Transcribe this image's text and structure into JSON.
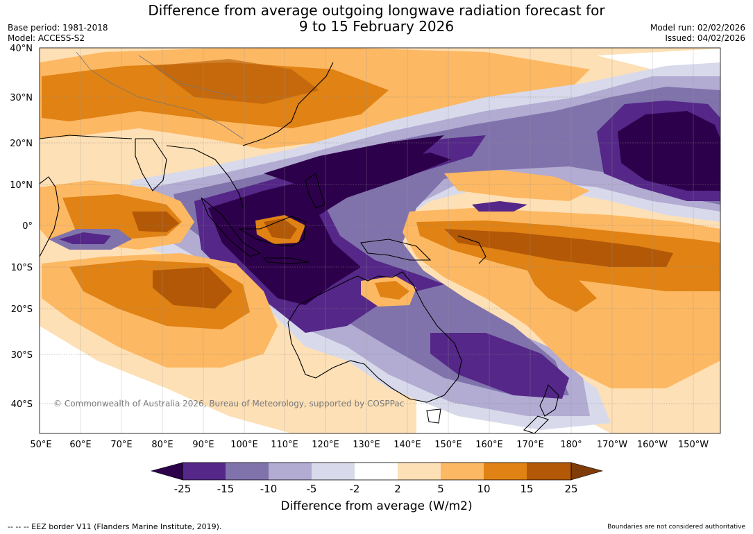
{
  "title_line1": "Difference from average outgoing longwave radiation forecast for",
  "title_line2": "9 to 15 February 2026",
  "base_period": "Base period: 1981-2018",
  "model": "Model: ACCESS-S2",
  "model_run": "Model run: 02/02/2026",
  "issued": "Issued: 04/02/2026",
  "copyright": "© Commonwealth of Australia 2026, Bureau of Meteorology, supported by COSPPac",
  "lat_labels": [
    "40°N",
    "30°N",
    "20°N",
    "10°N",
    "0°",
    "10°S",
    "20°S",
    "30°S",
    "40°S"
  ],
  "lon_labels": [
    "50°E",
    "60°E",
    "70°E",
    "80°E",
    "90°E",
    "100°E",
    "110°E",
    "120°E",
    "130°E",
    "140°E",
    "150°E",
    "160°E",
    "170°E",
    "180°",
    "170°W",
    "160°W",
    "150°W"
  ],
  "colorbar": {
    "title": "Difference from average (W/m2)",
    "ticks": [
      "-25",
      "-15",
      "-10",
      "-5",
      "-2",
      "2",
      "5",
      "10",
      "15",
      "25"
    ],
    "colors": [
      "#2d004b",
      "#542788",
      "#8073ac",
      "#b2abd2",
      "#d8daeb",
      "#ffffff",
      "#fee0b6",
      "#fdb863",
      "#e08214",
      "#b35806",
      "#7f3b08"
    ]
  },
  "footer_left": "--  --  -- EEZ border V11 (Flanders Marine Institute, 2019).",
  "footer_right": "Boundaries are not considered authoritative"
}
